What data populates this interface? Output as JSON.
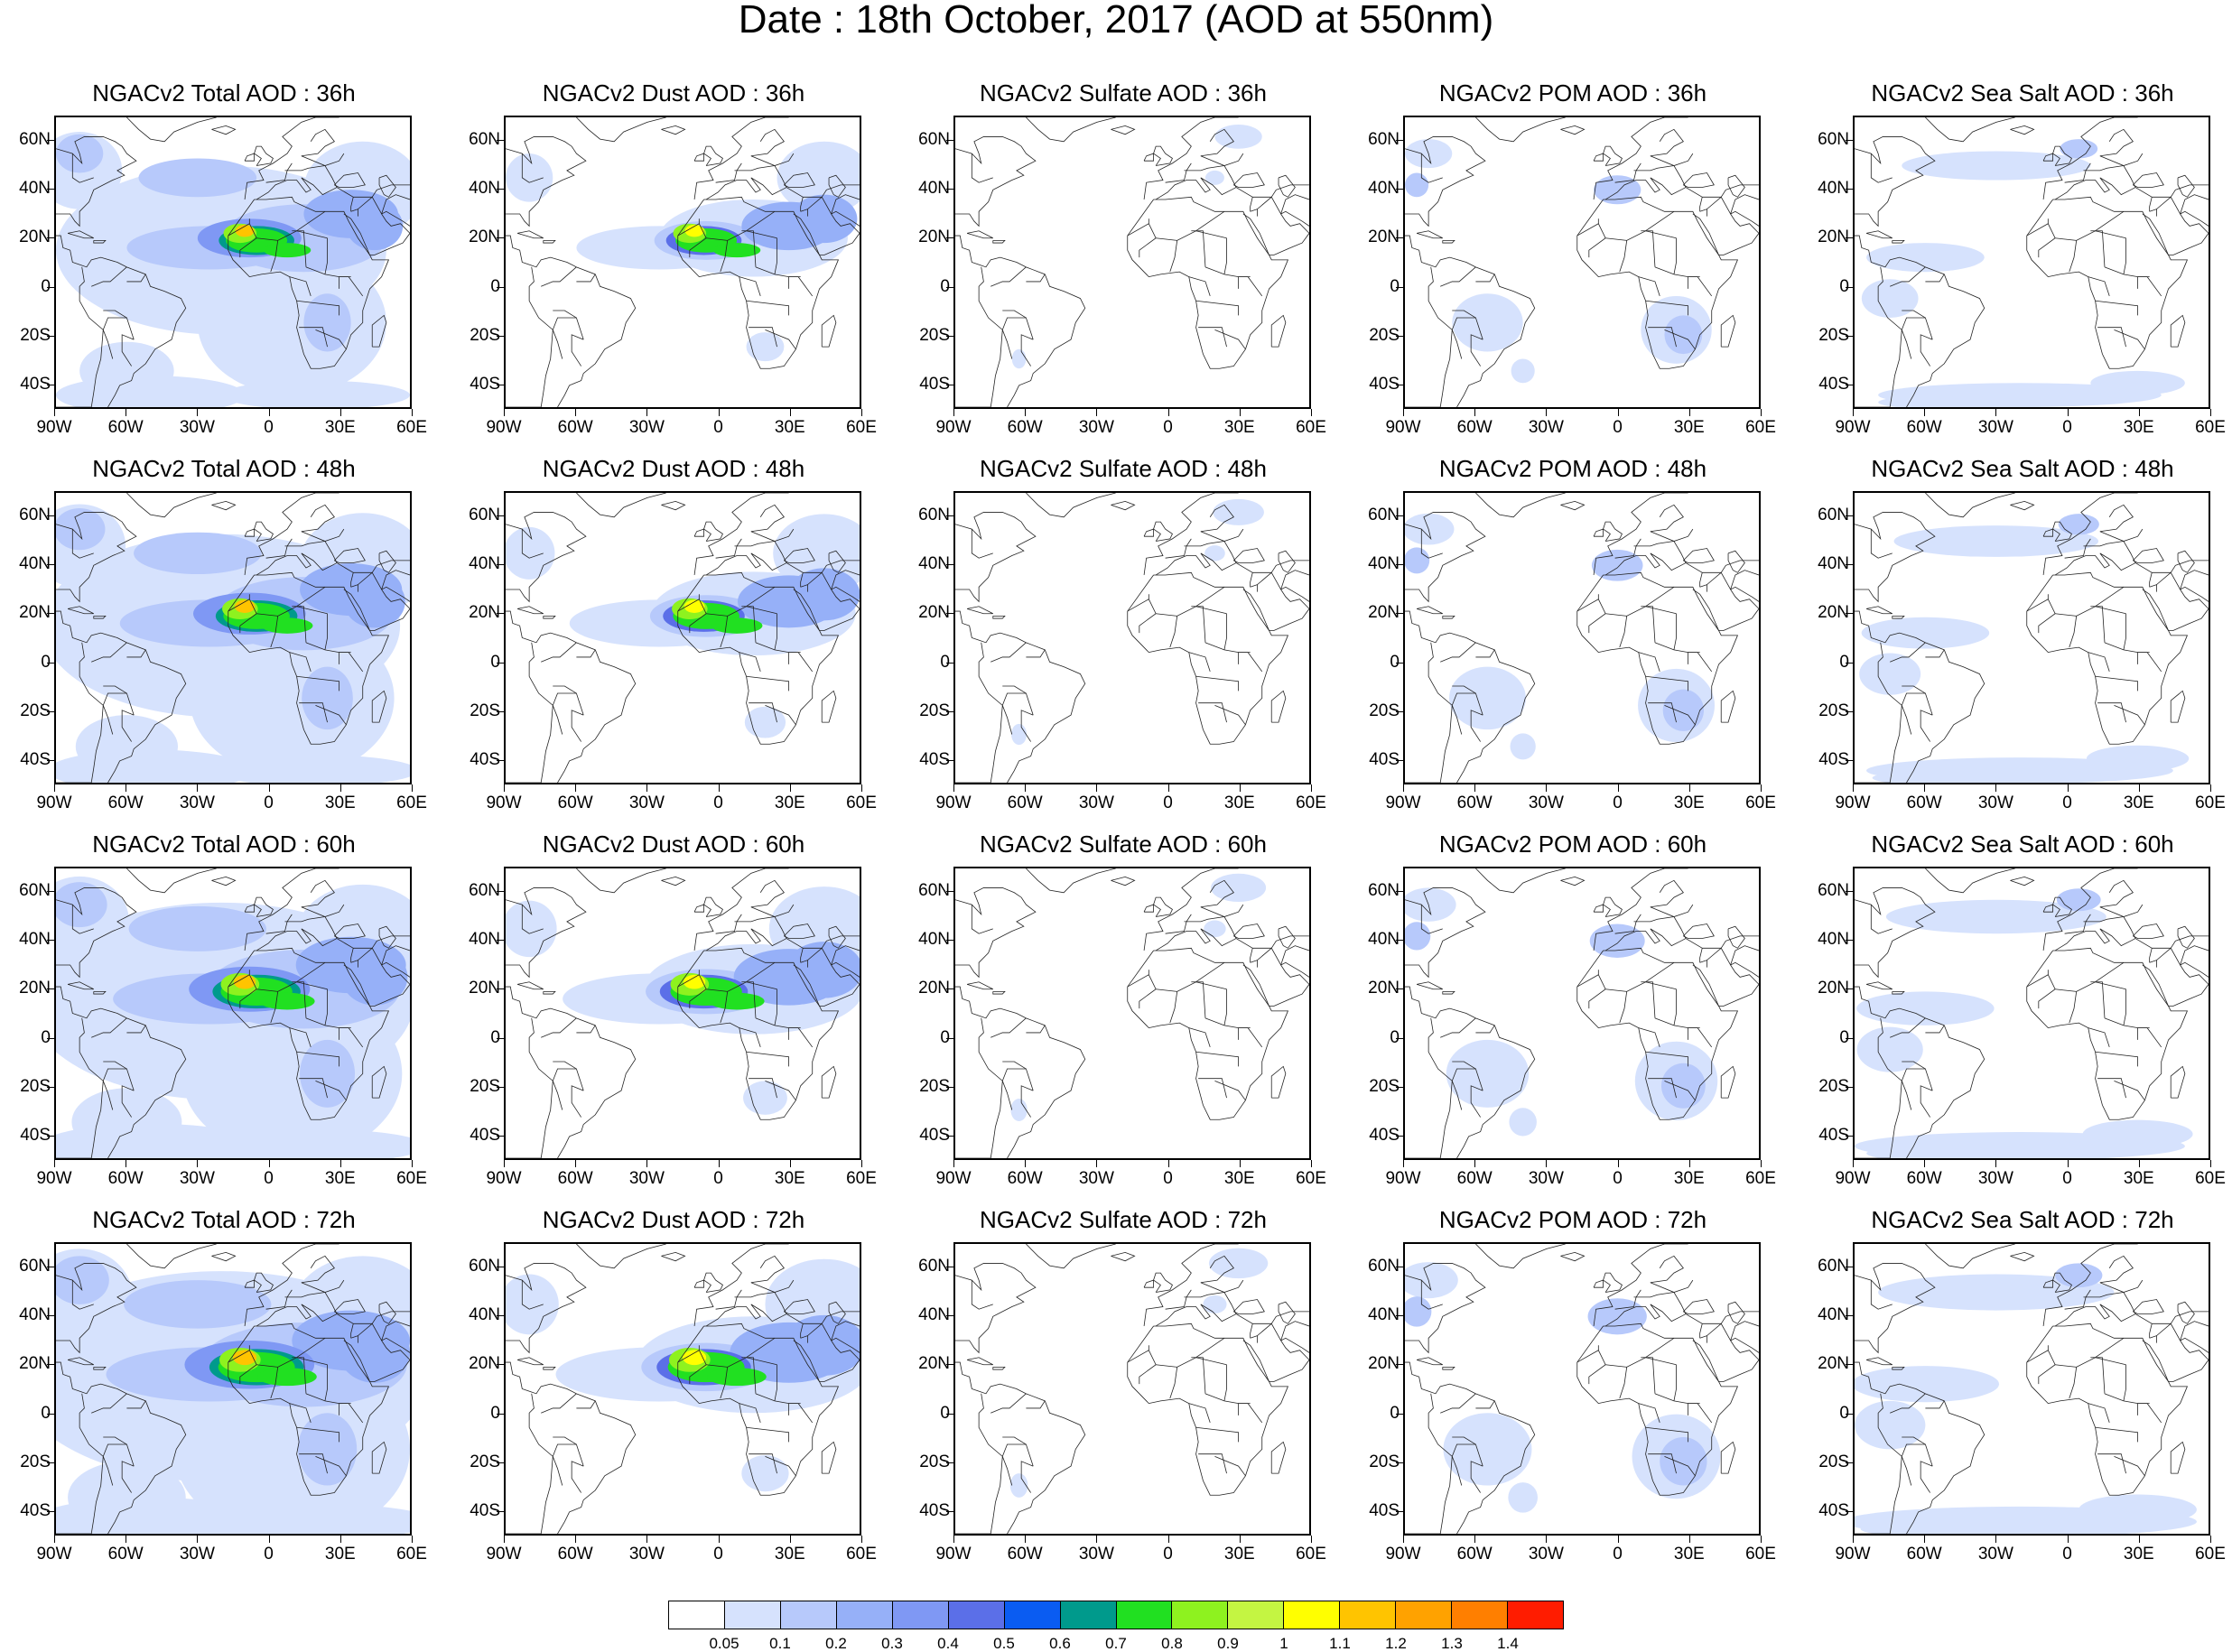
{
  "title": "Date : 18th October, 2017 (AOD at 550nm)",
  "axes": {
    "lon_ticks": [
      "90W",
      "60W",
      "30W",
      "0",
      "30E",
      "60E"
    ],
    "lat_ticks": [
      "60N",
      "40N",
      "20N",
      "0",
      "20S",
      "40S"
    ],
    "lon_range": [
      -90,
      60
    ],
    "lat_range": [
      -50,
      70
    ]
  },
  "panels": [
    {
      "title": "NGACv2 Total AOD : 36h",
      "species": "total",
      "hour": 36
    },
    {
      "title": "NGACv2 Dust AOD : 36h",
      "species": "dust",
      "hour": 36
    },
    {
      "title": "NGACv2 Sulfate AOD : 36h",
      "species": "sulfate",
      "hour": 36
    },
    {
      "title": "NGACv2 POM AOD : 36h",
      "species": "pom",
      "hour": 36
    },
    {
      "title": "NGACv2 Sea Salt AOD : 36h",
      "species": "seasalt",
      "hour": 36
    },
    {
      "title": "NGACv2 Total AOD : 48h",
      "species": "total",
      "hour": 48
    },
    {
      "title": "NGACv2 Dust AOD : 48h",
      "species": "dust",
      "hour": 48
    },
    {
      "title": "NGACv2 Sulfate AOD : 48h",
      "species": "sulfate",
      "hour": 48
    },
    {
      "title": "NGACv2 POM AOD : 48h",
      "species": "pom",
      "hour": 48
    },
    {
      "title": "NGACv2 Sea Salt AOD : 48h",
      "species": "seasalt",
      "hour": 48
    },
    {
      "title": "NGACv2 Total AOD : 60h",
      "species": "total",
      "hour": 60
    },
    {
      "title": "NGACv2 Dust AOD : 60h",
      "species": "dust",
      "hour": 60
    },
    {
      "title": "NGACv2 Sulfate AOD : 60h",
      "species": "sulfate",
      "hour": 60
    },
    {
      "title": "NGACv2 POM AOD : 60h",
      "species": "pom",
      "hour": 60
    },
    {
      "title": "NGACv2 Sea Salt AOD : 60h",
      "species": "seasalt",
      "hour": 60
    },
    {
      "title": "NGACv2 Total AOD : 72h",
      "species": "total",
      "hour": 72
    },
    {
      "title": "NGACv2 Dust AOD : 72h",
      "species": "dust",
      "hour": 72
    },
    {
      "title": "NGACv2 Sulfate AOD : 72h",
      "species": "sulfate",
      "hour": 72
    },
    {
      "title": "NGACv2 POM AOD : 72h",
      "species": "pom",
      "hour": 72
    },
    {
      "title": "NGACv2 Sea Salt  AOD : 72h",
      "species": "seasalt",
      "hour": 72
    }
  ],
  "colorbar": {
    "labels": [
      "0.05",
      "0.1",
      "0.2",
      "0.3",
      "0.4",
      "0.5",
      "0.6",
      "0.7",
      "0.8",
      "0.9",
      "1",
      "1.1",
      "1.2",
      "1.3",
      "1.4"
    ],
    "colors": [
      "#ffffff",
      "#d6e2fd",
      "#b7c9fb",
      "#96b0f8",
      "#7f98f4",
      "#5b6fe8",
      "#0a5cf2",
      "#009a8c",
      "#21e021",
      "#8ef21f",
      "#c4f542",
      "#ffff00",
      "#ffc400",
      "#ffa200",
      "#ff7f00",
      "#ff1c00"
    ]
  }
}
